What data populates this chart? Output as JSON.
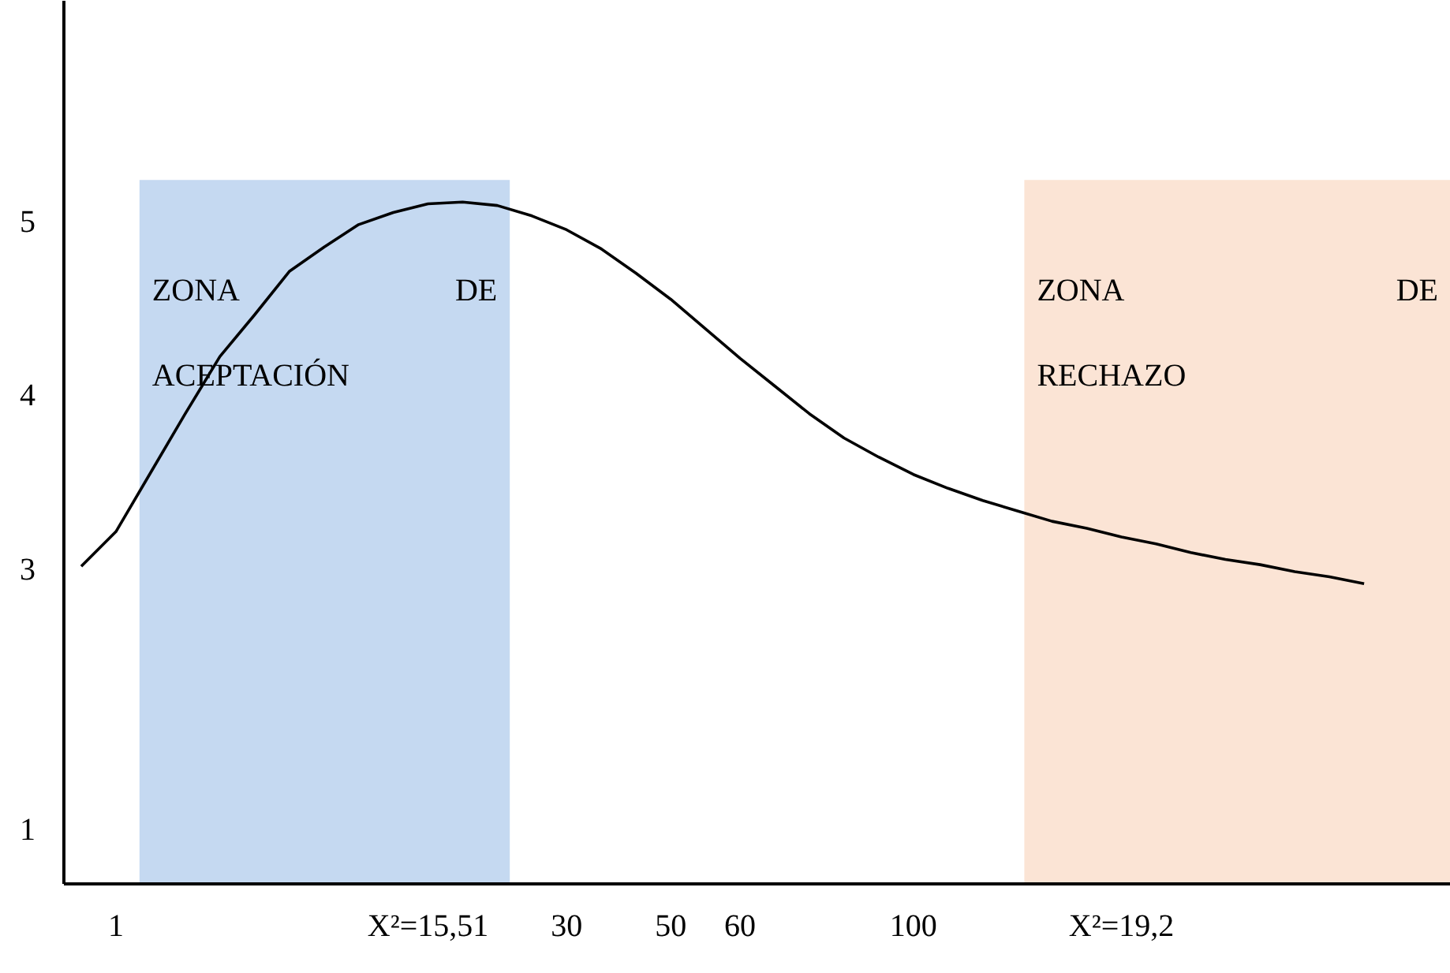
{
  "chart_data": {
    "type": "line",
    "categories": [
      null,
      "1",
      null,
      null,
      null,
      null,
      null,
      null,
      null,
      null,
      "X²=15,51",
      null,
      null,
      null,
      "30",
      null,
      null,
      "50",
      null,
      "60",
      null,
      null,
      null,
      null,
      "100",
      null,
      null,
      null,
      null,
      null,
      "X²=19,2",
      null,
      null,
      null,
      null,
      null,
      null,
      null,
      null,
      null
    ],
    "series": [
      {
        "color": "#000000",
        "values": [
          3.01,
          3.21,
          3.55,
          3.89,
          4.22,
          4.46,
          4.71,
          4.85,
          4.98,
          5.05,
          5.1,
          5.11,
          5.09,
          5.03,
          4.95,
          4.84,
          4.7,
          4.55,
          4.38,
          4.21,
          4.05,
          3.89,
          3.75,
          3.64,
          3.54,
          3.46,
          3.39,
          3.33,
          3.27,
          3.23,
          3.18,
          3.14,
          3.09,
          3.05,
          3.02,
          2.98,
          2.95,
          2.91,
          null,
          null
        ]
      }
    ],
    "ylim": [
      1.18,
      6.27
    ],
    "yticks": [
      {
        "value": 1.5,
        "label": "1"
      },
      3,
      4,
      5
    ],
    "annotations": [
      "ZONA DE ACEPTACIÓN",
      "ZONA DE RECHAZO"
    ],
    "grid": false
  }
}
